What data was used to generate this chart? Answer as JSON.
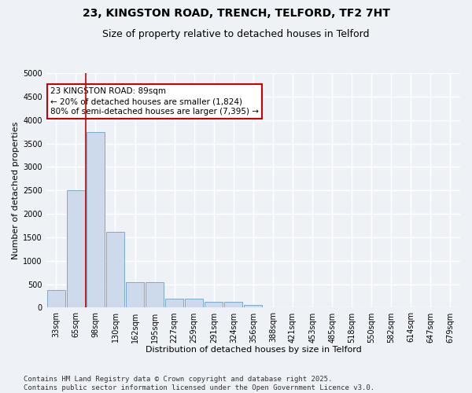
{
  "title": "23, KINGSTON ROAD, TRENCH, TELFORD, TF2 7HT",
  "subtitle": "Size of property relative to detached houses in Telford",
  "xlabel": "Distribution of detached houses by size in Telford",
  "ylabel": "Number of detached properties",
  "categories": [
    "33sqm",
    "65sqm",
    "98sqm",
    "130sqm",
    "162sqm",
    "195sqm",
    "227sqm",
    "259sqm",
    "291sqm",
    "324sqm",
    "356sqm",
    "388sqm",
    "421sqm",
    "453sqm",
    "485sqm",
    "518sqm",
    "550sqm",
    "582sqm",
    "614sqm",
    "647sqm",
    "679sqm"
  ],
  "values": [
    380,
    2500,
    3750,
    1620,
    550,
    550,
    200,
    200,
    130,
    130,
    60,
    0,
    0,
    0,
    0,
    0,
    0,
    0,
    0,
    0,
    0
  ],
  "bar_color": "#ccdaeb",
  "bar_edge_color": "#7aaac8",
  "vline_x": 1.5,
  "vline_color": "#cc0000",
  "annotation_text": "23 KINGSTON ROAD: 89sqm\n← 20% of detached houses are smaller (1,824)\n80% of semi-detached houses are larger (7,395) →",
  "annotation_box_color": "#ffffff",
  "annotation_box_edge_color": "#cc0000",
  "ylim": [
    0,
    5000
  ],
  "yticks": [
    0,
    500,
    1000,
    1500,
    2000,
    2500,
    3000,
    3500,
    4000,
    4500,
    5000
  ],
  "footer": "Contains HM Land Registry data © Crown copyright and database right 2025.\nContains public sector information licensed under the Open Government Licence v3.0.",
  "bg_color": "#eef2f7",
  "plot_bg_color": "#eef2f7",
  "grid_color": "#ffffff",
  "title_fontsize": 10,
  "subtitle_fontsize": 9,
  "axis_label_fontsize": 8,
  "tick_fontsize": 7,
  "footer_fontsize": 6.5,
  "annotation_fontsize": 7.5
}
